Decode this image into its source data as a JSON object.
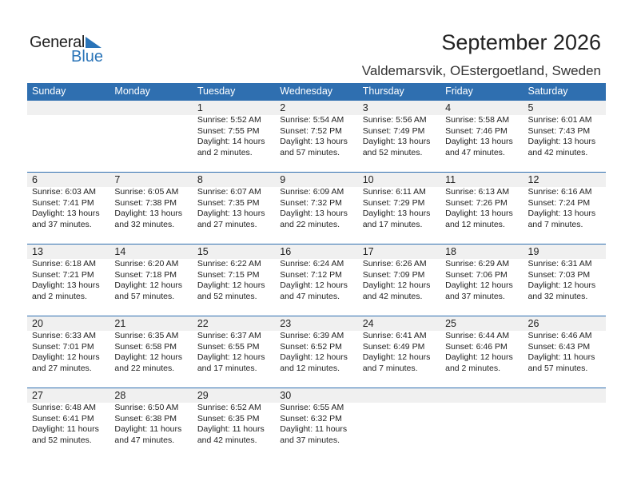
{
  "logo": {
    "general": "General",
    "blue": "Blue"
  },
  "title": "September 2026",
  "subtitle": "Valdemarsvik, OEstergoetland, Sweden",
  "colors": {
    "header": "#2f6fb0",
    "band": "#f0f0f0",
    "logo_blue": "#2a74b8"
  },
  "weekdays": [
    "Sunday",
    "Monday",
    "Tuesday",
    "Wednesday",
    "Thursday",
    "Friday",
    "Saturday"
  ],
  "weeks": [
    [
      null,
      null,
      {
        "d": "1",
        "sr": "Sunrise: 5:52 AM",
        "ss": "Sunset: 7:55 PM",
        "dl": "Daylight: 14 hours",
        "dm": "and 2 minutes."
      },
      {
        "d": "2",
        "sr": "Sunrise: 5:54 AM",
        "ss": "Sunset: 7:52 PM",
        "dl": "Daylight: 13 hours",
        "dm": "and 57 minutes."
      },
      {
        "d": "3",
        "sr": "Sunrise: 5:56 AM",
        "ss": "Sunset: 7:49 PM",
        "dl": "Daylight: 13 hours",
        "dm": "and 52 minutes."
      },
      {
        "d": "4",
        "sr": "Sunrise: 5:58 AM",
        "ss": "Sunset: 7:46 PM",
        "dl": "Daylight: 13 hours",
        "dm": "and 47 minutes."
      },
      {
        "d": "5",
        "sr": "Sunrise: 6:01 AM",
        "ss": "Sunset: 7:43 PM",
        "dl": "Daylight: 13 hours",
        "dm": "and 42 minutes."
      }
    ],
    [
      {
        "d": "6",
        "sr": "Sunrise: 6:03 AM",
        "ss": "Sunset: 7:41 PM",
        "dl": "Daylight: 13 hours",
        "dm": "and 37 minutes."
      },
      {
        "d": "7",
        "sr": "Sunrise: 6:05 AM",
        "ss": "Sunset: 7:38 PM",
        "dl": "Daylight: 13 hours",
        "dm": "and 32 minutes."
      },
      {
        "d": "8",
        "sr": "Sunrise: 6:07 AM",
        "ss": "Sunset: 7:35 PM",
        "dl": "Daylight: 13 hours",
        "dm": "and 27 minutes."
      },
      {
        "d": "9",
        "sr": "Sunrise: 6:09 AM",
        "ss": "Sunset: 7:32 PM",
        "dl": "Daylight: 13 hours",
        "dm": "and 22 minutes."
      },
      {
        "d": "10",
        "sr": "Sunrise: 6:11 AM",
        "ss": "Sunset: 7:29 PM",
        "dl": "Daylight: 13 hours",
        "dm": "and 17 minutes."
      },
      {
        "d": "11",
        "sr": "Sunrise: 6:13 AM",
        "ss": "Sunset: 7:26 PM",
        "dl": "Daylight: 13 hours",
        "dm": "and 12 minutes."
      },
      {
        "d": "12",
        "sr": "Sunrise: 6:16 AM",
        "ss": "Sunset: 7:24 PM",
        "dl": "Daylight: 13 hours",
        "dm": "and 7 minutes."
      }
    ],
    [
      {
        "d": "13",
        "sr": "Sunrise: 6:18 AM",
        "ss": "Sunset: 7:21 PM",
        "dl": "Daylight: 13 hours",
        "dm": "and 2 minutes."
      },
      {
        "d": "14",
        "sr": "Sunrise: 6:20 AM",
        "ss": "Sunset: 7:18 PM",
        "dl": "Daylight: 12 hours",
        "dm": "and 57 minutes."
      },
      {
        "d": "15",
        "sr": "Sunrise: 6:22 AM",
        "ss": "Sunset: 7:15 PM",
        "dl": "Daylight: 12 hours",
        "dm": "and 52 minutes."
      },
      {
        "d": "16",
        "sr": "Sunrise: 6:24 AM",
        "ss": "Sunset: 7:12 PM",
        "dl": "Daylight: 12 hours",
        "dm": "and 47 minutes."
      },
      {
        "d": "17",
        "sr": "Sunrise: 6:26 AM",
        "ss": "Sunset: 7:09 PM",
        "dl": "Daylight: 12 hours",
        "dm": "and 42 minutes."
      },
      {
        "d": "18",
        "sr": "Sunrise: 6:29 AM",
        "ss": "Sunset: 7:06 PM",
        "dl": "Daylight: 12 hours",
        "dm": "and 37 minutes."
      },
      {
        "d": "19",
        "sr": "Sunrise: 6:31 AM",
        "ss": "Sunset: 7:03 PM",
        "dl": "Daylight: 12 hours",
        "dm": "and 32 minutes."
      }
    ],
    [
      {
        "d": "20",
        "sr": "Sunrise: 6:33 AM",
        "ss": "Sunset: 7:01 PM",
        "dl": "Daylight: 12 hours",
        "dm": "and 27 minutes."
      },
      {
        "d": "21",
        "sr": "Sunrise: 6:35 AM",
        "ss": "Sunset: 6:58 PM",
        "dl": "Daylight: 12 hours",
        "dm": "and 22 minutes."
      },
      {
        "d": "22",
        "sr": "Sunrise: 6:37 AM",
        "ss": "Sunset: 6:55 PM",
        "dl": "Daylight: 12 hours",
        "dm": "and 17 minutes."
      },
      {
        "d": "23",
        "sr": "Sunrise: 6:39 AM",
        "ss": "Sunset: 6:52 PM",
        "dl": "Daylight: 12 hours",
        "dm": "and 12 minutes."
      },
      {
        "d": "24",
        "sr": "Sunrise: 6:41 AM",
        "ss": "Sunset: 6:49 PM",
        "dl": "Daylight: 12 hours",
        "dm": "and 7 minutes."
      },
      {
        "d": "25",
        "sr": "Sunrise: 6:44 AM",
        "ss": "Sunset: 6:46 PM",
        "dl": "Daylight: 12 hours",
        "dm": "and 2 minutes."
      },
      {
        "d": "26",
        "sr": "Sunrise: 6:46 AM",
        "ss": "Sunset: 6:43 PM",
        "dl": "Daylight: 11 hours",
        "dm": "and 57 minutes."
      }
    ],
    [
      {
        "d": "27",
        "sr": "Sunrise: 6:48 AM",
        "ss": "Sunset: 6:41 PM",
        "dl": "Daylight: 11 hours",
        "dm": "and 52 minutes."
      },
      {
        "d": "28",
        "sr": "Sunrise: 6:50 AM",
        "ss": "Sunset: 6:38 PM",
        "dl": "Daylight: 11 hours",
        "dm": "and 47 minutes."
      },
      {
        "d": "29",
        "sr": "Sunrise: 6:52 AM",
        "ss": "Sunset: 6:35 PM",
        "dl": "Daylight: 11 hours",
        "dm": "and 42 minutes."
      },
      {
        "d": "30",
        "sr": "Sunrise: 6:55 AM",
        "ss": "Sunset: 6:32 PM",
        "dl": "Daylight: 11 hours",
        "dm": "and 37 minutes."
      },
      null,
      null,
      null
    ]
  ]
}
